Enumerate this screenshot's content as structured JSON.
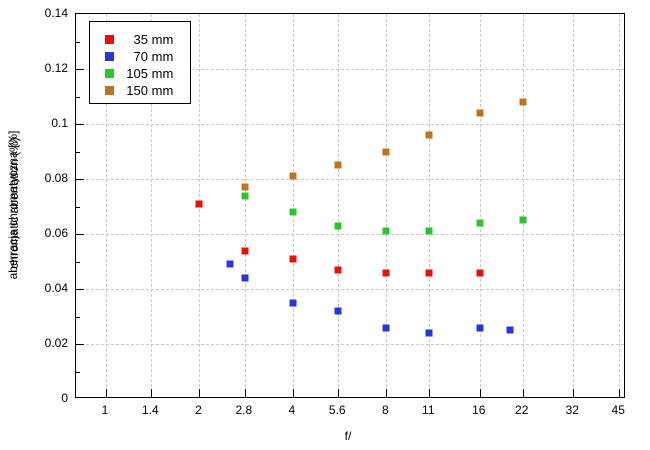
{
  "chart_data": {
    "type": "scatter",
    "title": "",
    "xlabel": "f/",
    "ylabel": "aberracja chromatyczna [%]",
    "ylabel_overlapped": "chromatic aberration (%)",
    "x_scale": "log2",
    "xlim": [
      0.8,
      47.3
    ],
    "ylim": [
      0,
      0.14
    ],
    "grid": true,
    "legend_position": "top-left",
    "marker": "square",
    "axis_color": "#000000",
    "grid_color": "#c9c9c9",
    "background_color": "#ffffff",
    "x_ticks": [
      {
        "f": 1,
        "label": "1"
      },
      {
        "f": 1.4,
        "label": "1.4"
      },
      {
        "f": 2,
        "label": "2"
      },
      {
        "f": 2.8,
        "label": "2.8"
      },
      {
        "f": 4,
        "label": "4"
      },
      {
        "f": 5.6,
        "label": "5.6"
      },
      {
        "f": 8,
        "label": "8"
      },
      {
        "f": 11,
        "label": "11"
      },
      {
        "f": 16,
        "label": "16"
      },
      {
        "f": 22,
        "label": "22"
      },
      {
        "f": 32,
        "label": "32"
      },
      {
        "f": 45,
        "label": "45"
      }
    ],
    "y_ticks": [
      {
        "v": 0,
        "label": "0"
      },
      {
        "v": 0.02,
        "label": "0.02"
      },
      {
        "v": 0.04,
        "label": "0.04"
      },
      {
        "v": 0.06,
        "label": "0.06"
      },
      {
        "v": 0.08,
        "label": "0.08"
      },
      {
        "v": 0.1,
        "label": "0.1"
      },
      {
        "v": 0.12,
        "label": "0.12"
      },
      {
        "v": 0.14,
        "label": "0.14"
      }
    ],
    "y_minor_ticks": [
      0.01,
      0.03,
      0.05,
      0.07,
      0.09,
      0.11,
      0.13
    ],
    "series": [
      {
        "name": "35 mm",
        "legend_num": "35",
        "legend_unit": " mm",
        "color": "#e8100c",
        "points": [
          {
            "f": 2,
            "v": 0.071
          },
          {
            "f": 2.8,
            "v": 0.054
          },
          {
            "f": 4,
            "v": 0.051
          },
          {
            "f": 5.6,
            "v": 0.047
          },
          {
            "f": 8,
            "v": 0.046
          },
          {
            "f": 11,
            "v": 0.046
          },
          {
            "f": 16,
            "v": 0.046
          }
        ]
      },
      {
        "name": "70 mm",
        "legend_num": "70",
        "legend_unit": " mm",
        "color": "#2438dc",
        "points": [
          {
            "f": 2.5,
            "v": 0.049
          },
          {
            "f": 2.8,
            "v": 0.044
          },
          {
            "f": 4,
            "v": 0.035
          },
          {
            "f": 5.6,
            "v": 0.032
          },
          {
            "f": 8,
            "v": 0.026
          },
          {
            "f": 11,
            "v": 0.024
          },
          {
            "f": 16,
            "v": 0.026
          },
          {
            "f": 20,
            "v": 0.025
          }
        ]
      },
      {
        "name": "105 mm",
        "legend_num": "105",
        "legend_unit": " mm",
        "color": "#2fc42f",
        "points": [
          {
            "f": 2.8,
            "v": 0.074
          },
          {
            "f": 4,
            "v": 0.068
          },
          {
            "f": 5.6,
            "v": 0.063
          },
          {
            "f": 8,
            "v": 0.061
          },
          {
            "f": 11,
            "v": 0.061
          },
          {
            "f": 16,
            "v": 0.064
          },
          {
            "f": 22,
            "v": 0.065
          }
        ]
      },
      {
        "name": "150 mm",
        "legend_num": "150",
        "legend_unit": " mm",
        "color": "#c0731f",
        "points": [
          {
            "f": 2.8,
            "v": 0.077
          },
          {
            "f": 4,
            "v": 0.081
          },
          {
            "f": 5.6,
            "v": 0.085
          },
          {
            "f": 8,
            "v": 0.09
          },
          {
            "f": 11,
            "v": 0.096
          },
          {
            "f": 16,
            "v": 0.104
          },
          {
            "f": 22,
            "v": 0.108
          }
        ]
      }
    ]
  }
}
